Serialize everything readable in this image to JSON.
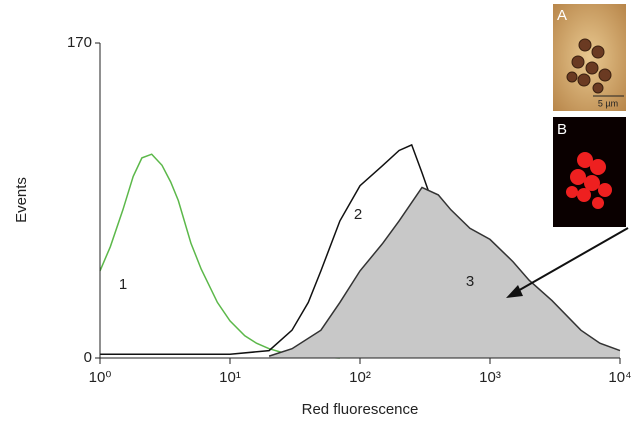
{
  "chart_data": {
    "type": "line",
    "xlabel": "Red fluorescence",
    "ylabel": "Events",
    "xscale": "log",
    "xlim": [
      1,
      10000
    ],
    "xticks": [
      {
        "value": 1,
        "label": "10⁰"
      },
      {
        "value": 10,
        "label": "10¹"
      },
      {
        "value": 100,
        "label": "10²"
      },
      {
        "value": 1000,
        "label": "10³"
      },
      {
        "value": 10000,
        "label": "10⁴"
      }
    ],
    "ylim": [
      0,
      170
    ],
    "yticks": [
      0,
      170
    ],
    "annotations": [
      "1",
      "2",
      "3"
    ],
    "insets": [
      {
        "label": "A",
        "scale_bar": "5 µm"
      },
      {
        "label": "B"
      }
    ],
    "series": [
      {
        "name": "1",
        "color": "#5cb84a",
        "x": [
          1,
          1.2,
          1.5,
          1.8,
          2.1,
          2.5,
          3,
          3.5,
          4,
          5,
          6,
          8,
          10,
          13,
          16,
          20,
          25,
          30,
          40,
          50,
          70
        ],
        "values": [
          47,
          60,
          80,
          98,
          108,
          110,
          104,
          95,
          85,
          62,
          48,
          30,
          20,
          12,
          8,
          5,
          3,
          2,
          1,
          0.5,
          0
        ]
      },
      {
        "name": "2",
        "color": "#111111",
        "x": [
          1,
          2,
          5,
          10,
          20,
          30,
          40,
          50,
          70,
          100,
          150,
          200,
          250,
          300,
          400,
          500,
          700,
          1000,
          1500,
          2000,
          3000,
          5000,
          10000
        ],
        "values": [
          2,
          2,
          2,
          2,
          4,
          15,
          30,
          47,
          74,
          93,
          104,
          112,
          115,
          100,
          75,
          58,
          42,
          31,
          22,
          15,
          9,
          4,
          2
        ]
      },
      {
        "name": "3",
        "color": "#333333",
        "fill": "#c8c8c8",
        "x": [
          20,
          30,
          50,
          70,
          100,
          150,
          200,
          300,
          400,
          500,
          700,
          1000,
          1500,
          2000,
          3000,
          5000,
          7000,
          10000
        ],
        "values": [
          1,
          5,
          15,
          30,
          47,
          62,
          74,
          92,
          88,
          80,
          70,
          64,
          52,
          42,
          31,
          15,
          8,
          4
        ]
      }
    ]
  }
}
